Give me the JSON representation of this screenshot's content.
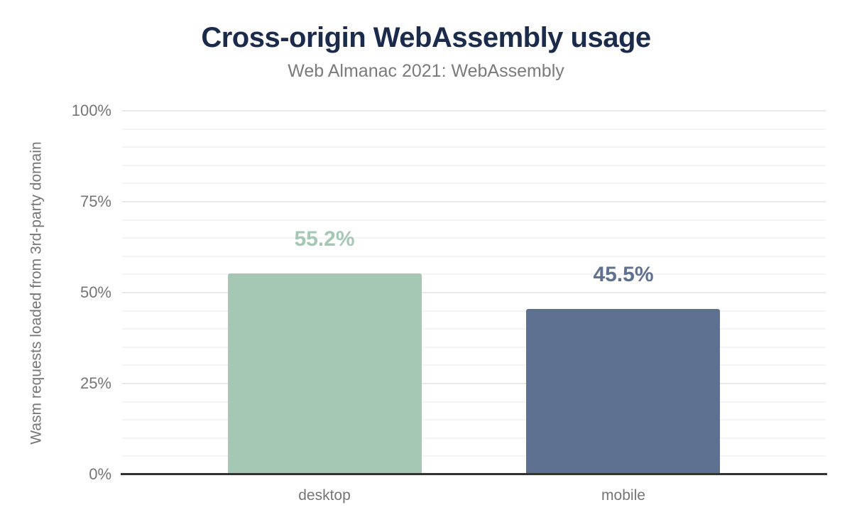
{
  "chart_data": {
    "type": "bar",
    "title": "Cross-origin WebAssembly usage",
    "subtitle": "Web Almanac 2021: WebAssembly",
    "ylabel": "Wasm requests loaded from 3rd-party domain",
    "xlabel": "",
    "categories": [
      "desktop",
      "mobile"
    ],
    "values": [
      55.2,
      45.5
    ],
    "value_labels": [
      "55.2%",
      "45.5%"
    ],
    "bar_colors": [
      "#a5c8b5",
      "#5e7190"
    ],
    "value_label_colors": [
      "#a5c8b5",
      "#5e7190"
    ],
    "ylim": [
      0,
      100
    ],
    "y_tick_values": [
      0,
      25,
      50,
      75,
      100
    ],
    "y_tick_labels": [
      "0%",
      "25%",
      "50%",
      "75%",
      "100%"
    ],
    "minor_gridline_step": 5,
    "grid": "on",
    "legend": "none"
  },
  "colors": {
    "title_text": "#1a2b4b",
    "subtitle_text": "#7b7b7b",
    "axis_text": "#757575",
    "axis_line": "#333333",
    "major_gridline": "#e9e9e9",
    "minor_gridline": "#f4f4f4",
    "background": "#ffffff"
  }
}
